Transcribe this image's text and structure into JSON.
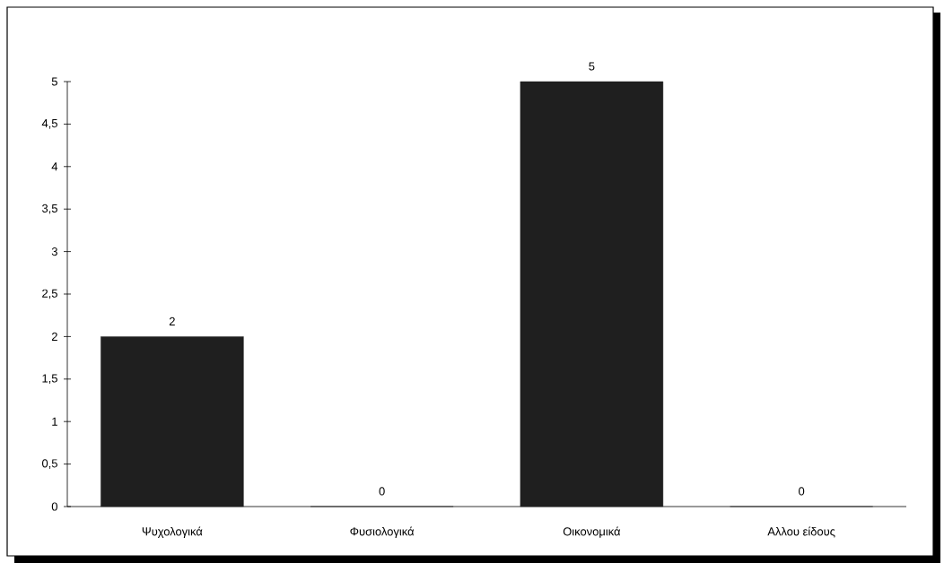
{
  "chart_data": {
    "type": "bar",
    "categories": [
      "Ψυχολογικά",
      "Φυσιολογικά",
      "Οικονομικά",
      "Αλλου είδους"
    ],
    "values": [
      2,
      0,
      5,
      0
    ],
    "color": "#1f1f1f",
    "ylim": [
      0,
      5
    ],
    "yticks": [
      0,
      {
        "value": 0.5,
        "label": "0,5"
      },
      1,
      {
        "value": 1.5,
        "label": "1,5"
      },
      2,
      {
        "value": 2.5,
        "label": "2,5"
      },
      3,
      {
        "value": 3.5,
        "label": "3,5"
      },
      4,
      {
        "value": 4.5,
        "label": "4,5"
      },
      5
    ],
    "data_labels": true,
    "grid": false
  }
}
